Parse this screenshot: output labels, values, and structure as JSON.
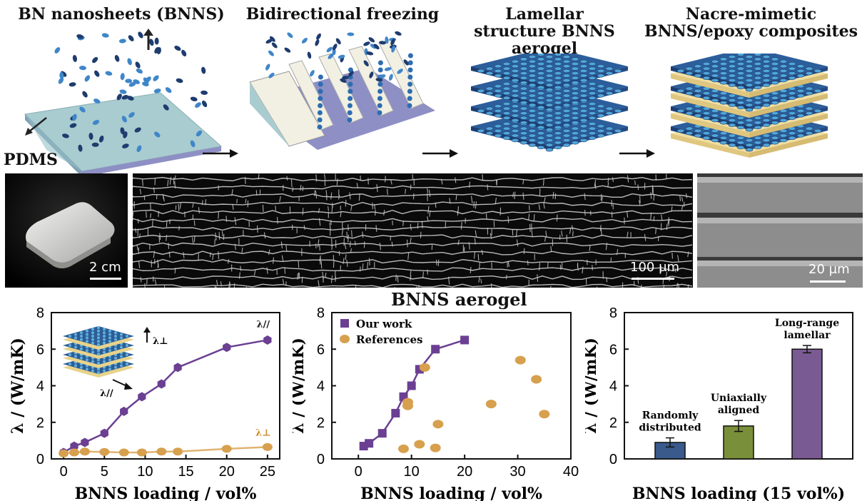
{
  "schematic": {
    "steps": [
      {
        "title": "BN nanosheets (BNNS)"
      },
      {
        "title": "Bidirectional freezing"
      },
      {
        "title": "Lamellar structure BNNS aerogel"
      },
      {
        "title": "Nacre-mimetic BNNS/epoxy composites"
      }
    ],
    "pdms_label": "PDMS"
  },
  "photos": {
    "aerogel_scale": "2 cm",
    "sem1_scale": "100 μm",
    "sem2_scale": "20 μm",
    "caption": "BNNS aerogel"
  },
  "colors": {
    "purple": "#6b3f92",
    "orange": "#d7a04e",
    "bar_blue": "#3a5a8c",
    "bar_green": "#7a8f3a",
    "bar_purple": "#7a5a93"
  },
  "chart_data": [
    {
      "type": "line",
      "title": "",
      "xlabel": "BNNS loading / vol%",
      "ylabel": "λ / (W/mK)",
      "xlim": [
        -1.5,
        26.5
      ],
      "ylim": [
        0,
        8
      ],
      "xticks": [
        0,
        5,
        10,
        15,
        20,
        25
      ],
      "yticks": [
        0,
        2,
        4,
        6,
        8
      ],
      "series": [
        {
          "name": "λ//",
          "label": "λ//",
          "color": "#6b3f92",
          "x": [
            0,
            1.3,
            2.6,
            5,
            7.4,
            9.6,
            12,
            14,
            20,
            25
          ],
          "y": [
            0.35,
            0.7,
            0.9,
            1.4,
            2.6,
            3.4,
            4.1,
            5.0,
            6.1,
            6.5
          ]
        },
        {
          "name": "λ⊥",
          "label": "λ⊥",
          "color": "#d7a04e",
          "x": [
            0,
            1.3,
            2.6,
            5,
            7.4,
            9.6,
            12,
            14,
            20,
            25
          ],
          "y": [
            0.3,
            0.35,
            0.4,
            0.38,
            0.35,
            0.35,
            0.4,
            0.4,
            0.55,
            0.65
          ]
        }
      ],
      "inset_labels": {
        "perp": "λ⊥",
        "para": "λ//"
      }
    },
    {
      "type": "scatter",
      "title": "",
      "xlabel": "BNNS loading / vol%",
      "ylabel": "λ / (W/mK)",
      "xlim": [
        -5,
        40
      ],
      "ylim": [
        0,
        8
      ],
      "xticks": [
        0,
        10,
        20,
        30,
        40
      ],
      "yticks": [
        0,
        2,
        4,
        6,
        8
      ],
      "legend": [
        "Our work",
        "References"
      ],
      "series": [
        {
          "name": "Our work",
          "color": "#6b3f92",
          "connected": true,
          "x": [
            1,
            2,
            4.5,
            7,
            8.5,
            10,
            11.5,
            14.5,
            20
          ],
          "y": [
            0.7,
            0.85,
            1.4,
            2.5,
            3.4,
            4.0,
            4.9,
            6.0,
            6.5
          ]
        },
        {
          "name": "References",
          "color": "#d7a04e",
          "connected": false,
          "x": [
            8.5,
            9.3,
            9.3,
            11.5,
            12.5,
            14.5,
            15,
            25,
            30.5,
            33.5,
            35
          ],
          "y": [
            0.55,
            2.9,
            3.1,
            0.8,
            5.0,
            0.6,
            1.9,
            3.0,
            5.4,
            4.35,
            2.45
          ]
        }
      ]
    },
    {
      "type": "bar",
      "title": "",
      "xlabel": "BNNS loading (15 vol%)",
      "ylabel": "λ / (W/mK)",
      "ylim": [
        0,
        8
      ],
      "yticks": [
        0,
        2,
        4,
        6,
        8
      ],
      "categories": [
        "Randomly distributed",
        "Uniaxially aligned",
        "Long-range lamellar"
      ],
      "category_lines": [
        [
          "Randomly",
          "distributed"
        ],
        [
          "Uniaxially",
          "aligned"
        ],
        [
          "Long-range",
          "lamellar"
        ]
      ],
      "values": [
        0.9,
        1.8,
        6.0
      ],
      "errors": [
        0.25,
        0.3,
        0.2
      ],
      "colors": [
        "#3a5a8c",
        "#7a8f3a",
        "#7a5a93"
      ]
    }
  ]
}
